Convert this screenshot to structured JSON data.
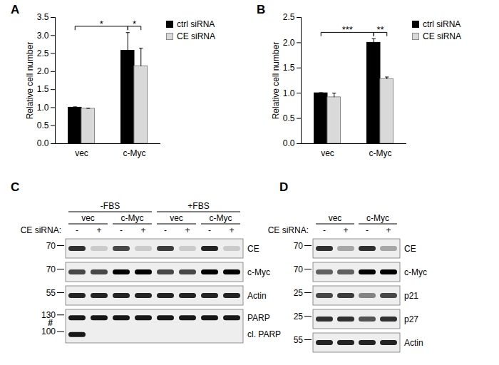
{
  "chart_data": [
    {
      "type": "bar",
      "title": "A",
      "categories": [
        "vec",
        "c-Myc"
      ],
      "series": [
        {
          "name": "ctrl siRNA",
          "color": "#000000",
          "values": [
            1.0,
            2.58
          ],
          "errors": [
            0.02,
            0.5
          ]
        },
        {
          "name": "CE siRNA",
          "color": "#d9d9d9",
          "values": [
            0.97,
            2.15
          ],
          "errors": [
            0.01,
            0.5
          ]
        }
      ],
      "ylabel": "Relative cell number",
      "ylim": [
        0,
        3.5
      ],
      "yticks": [
        {
          "value": 0,
          "label": "0.0"
        },
        0.5,
        {
          "value": 1,
          "label": "1.0"
        },
        1.5,
        {
          "value": 2,
          "label": "2.0"
        },
        2.5,
        {
          "value": 3,
          "label": "3.0"
        },
        3.5
      ],
      "legend": "upper right",
      "annotations": [
        {
          "text": "*",
          "between": [
            [
              "vec",
              "ctrl siRNA"
            ],
            [
              "c-Myc",
              "ctrl siRNA"
            ]
          ]
        },
        {
          "text": "*",
          "between": [
            [
              "c-Myc",
              "ctrl siRNA"
            ],
            [
              "c-Myc",
              "CE siRNA"
            ]
          ]
        }
      ]
    },
    {
      "type": "bar",
      "title": "B",
      "categories": [
        "vec",
        "c-Myc"
      ],
      "series": [
        {
          "name": "ctrl siRNA",
          "color": "#000000",
          "values": [
            1.0,
            2.0
          ],
          "errors": [
            0.01,
            0.08
          ]
        },
        {
          "name": "CE siRNA",
          "color": "#d9d9d9",
          "values": [
            0.92,
            1.28
          ],
          "errors": [
            0.08,
            0.04
          ]
        }
      ],
      "ylabel": "Relative cell number",
      "ylim": [
        0,
        2.5
      ],
      "yticks": [
        {
          "value": 0,
          "label": "0.0"
        },
        0.5,
        {
          "value": 1,
          "label": "1.0"
        },
        1.5,
        {
          "value": 2,
          "label": "2.0"
        },
        2.5
      ],
      "legend": "upper right",
      "annotations": [
        {
          "text": "***",
          "between": [
            [
              "vec",
              "ctrl siRNA"
            ],
            [
              "c-Myc",
              "ctrl siRNA"
            ]
          ]
        },
        {
          "text": "**",
          "between": [
            [
              "c-Myc",
              "ctrl siRNA"
            ],
            [
              "c-Myc",
              "CE siRNA"
            ]
          ]
        }
      ]
    }
  ],
  "blots": [
    {
      "title": "C",
      "lane_headers": [
        {
          "label": null,
          "values": [
            "-FBS",
            "-FBS",
            "-FBS",
            "-FBS",
            "+FBS",
            "+FBS",
            "+FBS",
            "+FBS"
          ]
        },
        {
          "label": null,
          "values": [
            "vec",
            "vec",
            "c-Myc",
            "c-Myc",
            "vec",
            "vec",
            "c-Myc",
            "c-Myc"
          ]
        },
        {
          "label": "CE siRNA:",
          "values": [
            "-",
            "+",
            "-",
            "+",
            "-",
            "+",
            "-",
            "+"
          ]
        }
      ],
      "strips": [
        {
          "bands": [
            {
              "label": "CE",
              "marker": 70,
              "intensity": [
                0.8,
                0.15,
                0.7,
                0.15,
                0.75,
                0.15,
                0.85,
                0.15
              ]
            }
          ]
        },
        {
          "bands": [
            {
              "label": "c-Myc",
              "marker": 70,
              "intensity": [
                0.7,
                0.7,
                1.0,
                1.0,
                0.7,
                0.7,
                1.0,
                1.0
              ]
            }
          ]
        },
        {
          "bands": [
            {
              "label": "Actin",
              "marker": 55,
              "intensity": [
                0.85,
                0.85,
                0.85,
                0.85,
                0.85,
                0.85,
                0.85,
                0.85
              ]
            }
          ]
        },
        {
          "bands": [
            {
              "label": "PARP",
              "marker": 130,
              "intensity": [
                0.9,
                0.9,
                0.9,
                0.9,
                0.9,
                0.9,
                0.9,
                0.9
              ]
            },
            {
              "label": "cl. PARP",
              "marker": 100,
              "intensity": [
                0.9,
                0,
                0,
                0,
                0,
                0,
                0,
                0
              ],
              "note": "#"
            }
          ]
        }
      ]
    },
    {
      "title": "D",
      "lane_headers": [
        {
          "label": null,
          "values": [
            "vec",
            "vec",
            "c-Myc",
            "c-Myc"
          ]
        },
        {
          "label": "CE siRNA:",
          "values": [
            "-",
            "+",
            "-",
            "+"
          ]
        }
      ],
      "strips": [
        {
          "bands": [
            {
              "label": "CE",
              "marker": 70,
              "intensity": [
                0.8,
                0.3,
                0.8,
                0.3
              ]
            }
          ]
        },
        {
          "bands": [
            {
              "label": "c-Myc",
              "marker": 70,
              "intensity": [
                0.6,
                0.6,
                1.0,
                1.0
              ]
            }
          ]
        },
        {
          "bands": [
            {
              "label": "p21",
              "marker": 25,
              "intensity": [
                0.7,
                0.75,
                0.45,
                0.7
              ]
            }
          ]
        },
        {
          "bands": [
            {
              "label": "p27",
              "marker": 25,
              "intensity": [
                0.8,
                0.8,
                0.65,
                0.8
              ]
            }
          ]
        },
        {
          "bands": [
            {
              "label": "Actin",
              "marker": 55,
              "intensity": [
                0.85,
                0.85,
                0.85,
                0.85
              ]
            }
          ]
        }
      ]
    }
  ]
}
